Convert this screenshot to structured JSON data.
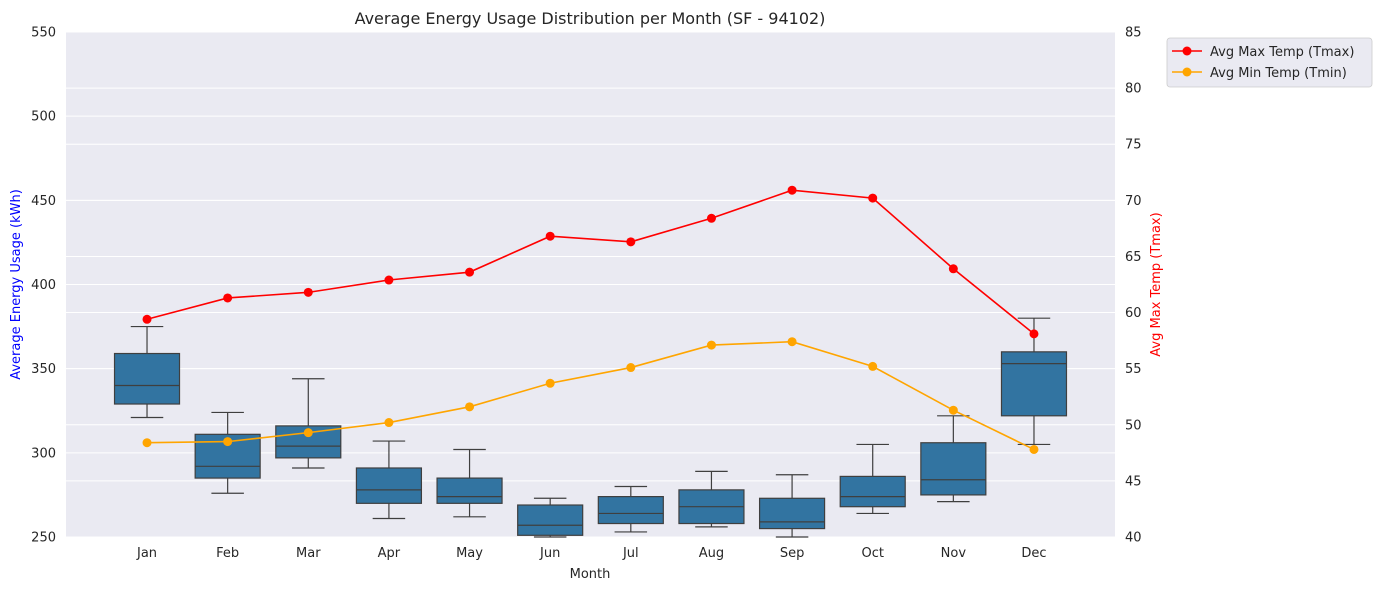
{
  "chart_data": {
    "type": "box",
    "title": "Average Energy Usage Distribution per Month (SF - 94102)",
    "xlabel": "Month",
    "ylabel": "Average Energy Usage (kWh)",
    "ylabel_color": "#0000ff",
    "y2label": "Avg Max Temp (Tmax)",
    "y2label_color": "#ff0000",
    "ylim": [
      250,
      550
    ],
    "y2lim": [
      40,
      85
    ],
    "yticks": [
      250,
      300,
      350,
      400,
      450,
      500,
      550
    ],
    "y2ticks": [
      40,
      45,
      50,
      55,
      60,
      65,
      70,
      75,
      80,
      85
    ],
    "grid": true,
    "legend_position": "outside-top-right",
    "categories": [
      "Jan",
      "Feb",
      "Mar",
      "Apr",
      "May",
      "Jun",
      "Jul",
      "Aug",
      "Sep",
      "Oct",
      "Nov",
      "Dec"
    ],
    "box_color": "#3274a1",
    "boxes": [
      {
        "whisker_low": 321,
        "q1": 329,
        "median": 340,
        "q3": 359,
        "whisker_high": 375
      },
      {
        "whisker_low": 276,
        "q1": 285,
        "median": 292,
        "q3": 311,
        "whisker_high": 324
      },
      {
        "whisker_low": 291,
        "q1": 297,
        "median": 304,
        "q3": 316,
        "whisker_high": 344
      },
      {
        "whisker_low": 261,
        "q1": 270,
        "median": 278,
        "q3": 291,
        "whisker_high": 307
      },
      {
        "whisker_low": 262,
        "q1": 270,
        "median": 274,
        "q3": 285,
        "whisker_high": 302
      },
      {
        "whisker_low": 250,
        "q1": 251,
        "median": 257,
        "q3": 269,
        "whisker_high": 273
      },
      {
        "whisker_low": 253,
        "q1": 258,
        "median": 264,
        "q3": 274,
        "whisker_high": 280
      },
      {
        "whisker_low": 256,
        "q1": 258,
        "median": 268,
        "q3": 278,
        "whisker_high": 289
      },
      {
        "whisker_low": 250,
        "q1": 255,
        "median": 259,
        "q3": 273,
        "whisker_high": 287
      },
      {
        "whisker_low": 264,
        "q1": 268,
        "median": 274,
        "q3": 286,
        "whisker_high": 305
      },
      {
        "whisker_low": 271,
        "q1": 275,
        "median": 284,
        "q3": 306,
        "whisker_high": 322
      },
      {
        "whisker_low": 305,
        "q1": 322,
        "median": 353,
        "q3": 360,
        "whisker_high": 380
      }
    ],
    "series": [
      {
        "name": "Avg Max Temp (Tmax)",
        "color": "#ff0000",
        "axis": "right",
        "values": [
          59.4,
          61.3,
          61.8,
          62.9,
          63.6,
          66.8,
          66.3,
          68.4,
          70.9,
          70.2,
          63.9,
          58.1
        ]
      },
      {
        "name": "Avg Min Temp (Tmin)",
        "color": "#ffa500",
        "axis": "right",
        "values": [
          48.4,
          48.5,
          49.3,
          50.2,
          51.6,
          53.7,
          55.1,
          57.1,
          57.4,
          55.2,
          51.3,
          47.8
        ]
      }
    ]
  }
}
